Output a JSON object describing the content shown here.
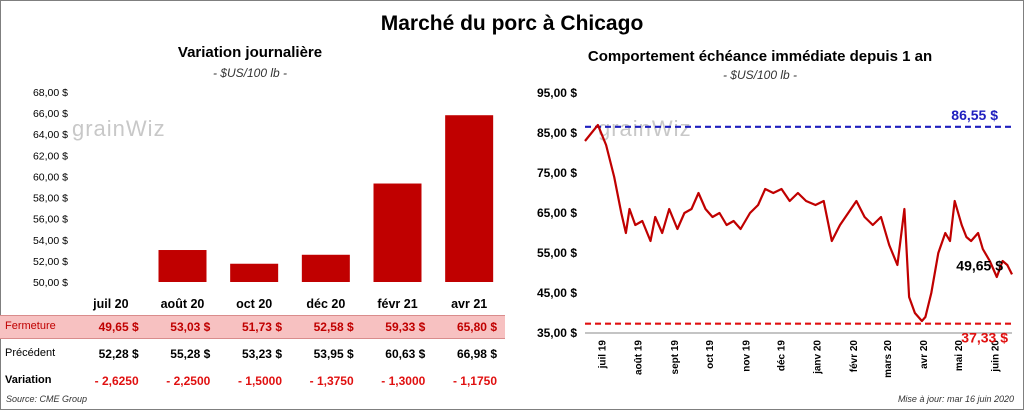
{
  "title": "Marché du porc à Chicago",
  "left": {
    "title": "Variation  journalière",
    "subtitle": "- $US/100 lb -",
    "yticks": [
      "68,00 $",
      "66,00 $",
      "64,00 $",
      "62,00 $",
      "60,00 $",
      "58,00 $",
      "56,00 $",
      "54,00 $",
      "52,00 $",
      "50,00 $"
    ]
  },
  "right": {
    "title": "Comportement  échéance immédiate depuis 1 an",
    "subtitle": "- $US/100 lb -",
    "yticks": [
      "95,00 $",
      "85,00 $",
      "75,00 $",
      "65,00 $",
      "55,00 $",
      "45,00 $",
      "35,00 $"
    ],
    "xticks": [
      "juil 19",
      "août 19",
      "sept 19",
      "oct 19",
      "nov 19",
      "déc 19",
      "janv 20",
      "févr 20",
      "mars 20",
      "avr 20",
      "mai 20",
      "juin 20"
    ],
    "max_label": "86,55 $",
    "min_label": "37,33 $",
    "last_label": "49,65 $"
  },
  "table": {
    "labels": {
      "close": "Fermeture",
      "prev": "Précédent",
      "var": "Variation"
    },
    "close": [
      "49,65 $",
      "53,03 $",
      "51,73 $",
      "52,58 $",
      "59,33 $",
      "65,80 $"
    ],
    "prev": [
      "52,28 $",
      "55,28 $",
      "53,23 $",
      "53,95 $",
      "60,63 $",
      "66,98 $"
    ],
    "var": [
      "- 2,6250",
      "- 2,2500",
      "- 1,5000",
      "- 1,3750",
      "- 1,3000",
      "- 1,1750"
    ]
  },
  "watermark": "grainWiz",
  "source": "Source: CME Group",
  "updated": "Mise à jour: mar 16 juin 2020",
  "colors": {
    "bar": "#c00000",
    "line": "#c00000",
    "max": "#1f1fbf",
    "min": "#e01010",
    "close_row": "#f7c1c1"
  },
  "chart_data": [
    {
      "type": "bar",
      "title": "Variation  journalière",
      "subtitle": "- $US/100 lb -",
      "categories": [
        "juil 20",
        "août 20",
        "oct 20",
        "déc 20",
        "févr 21",
        "avr 21"
      ],
      "values": [
        49.65,
        53.03,
        51.73,
        52.58,
        59.33,
        65.8
      ],
      "ylim": [
        50,
        68
      ],
      "grid": false
    },
    {
      "type": "line",
      "title": "Comportement  échéance immédiate depuis 1 an",
      "subtitle": "- $US/100 lb -",
      "ylim": [
        35,
        95
      ],
      "x": [
        "2019-06-17",
        "2019-06-28",
        "2019-07-05",
        "2019-07-12",
        "2019-07-18",
        "2019-07-22",
        "2019-07-25",
        "2019-07-30",
        "2019-08-05",
        "2019-08-12",
        "2019-08-16",
        "2019-08-22",
        "2019-08-28",
        "2019-09-04",
        "2019-09-10",
        "2019-09-16",
        "2019-09-22",
        "2019-09-28",
        "2019-10-04",
        "2019-10-10",
        "2019-10-16",
        "2019-10-22",
        "2019-10-28",
        "2019-11-05",
        "2019-11-12",
        "2019-11-18",
        "2019-11-25",
        "2019-12-02",
        "2019-12-09",
        "2019-12-16",
        "2019-12-23",
        "2019-12-31",
        "2020-01-07",
        "2020-01-14",
        "2020-01-21",
        "2020-01-28",
        "2020-02-04",
        "2020-02-11",
        "2020-02-18",
        "2020-02-25",
        "2020-03-03",
        "2020-03-10",
        "2020-03-16",
        "2020-03-20",
        "2020-03-25",
        "2020-03-31",
        "2020-04-03",
        "2020-04-08",
        "2020-04-14",
        "2020-04-20",
        "2020-04-24",
        "2020-04-28",
        "2020-05-04",
        "2020-05-08",
        "2020-05-12",
        "2020-05-18",
        "2020-05-22",
        "2020-05-28",
        "2020-06-03",
        "2020-06-08",
        "2020-06-12",
        "2020-06-16"
      ],
      "values": [
        83,
        87,
        82,
        74,
        65,
        60,
        66,
        62,
        63,
        58,
        64,
        60,
        66,
        61,
        65,
        66,
        70,
        66,
        64,
        65,
        62,
        63,
        61,
        65,
        67,
        71,
        70,
        71,
        68,
        70,
        68,
        67,
        68,
        58,
        62,
        65,
        68,
        64,
        62,
        64,
        57,
        52,
        66,
        44,
        40,
        38,
        39,
        45,
        55,
        60,
        58,
        68,
        62,
        59,
        58,
        60,
        56,
        53,
        49,
        53,
        52,
        49.65
      ],
      "annotations": [
        {
          "label": "86,55 $",
          "y": 86.55
        },
        {
          "label": "37,33 $",
          "y": 37.33
        },
        {
          "label": "49,65 $",
          "y": 49.65
        }
      ]
    }
  ]
}
